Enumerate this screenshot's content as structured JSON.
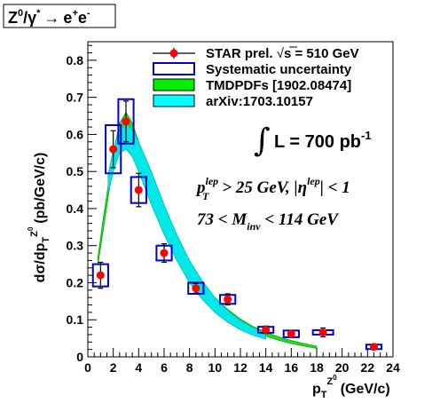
{
  "chart_data": {
    "type": "scatter",
    "corner_label": {
      "base": "Z",
      "sup": "0",
      "slash": "/γ",
      "star": "*",
      "arrow": "→",
      "e1": "e",
      "e1sup": "+",
      "e2": "e",
      "e2sup": "-"
    },
    "xlabel": {
      "base": "p",
      "sub": "T",
      "sup": "Z",
      "supsup": "0",
      "unit": "(GeV/c)"
    },
    "ylabel": {
      "pre": "dσ/dp",
      "sub": "T",
      "sup": "Z",
      "supsup": "0",
      "unit": "(pb/GeV/c)"
    },
    "xlim": [
      0,
      24
    ],
    "ylim": [
      0,
      0.85
    ],
    "xticks": [
      "0",
      "2",
      "4",
      "6",
      "8",
      "10",
      "12",
      "14",
      "16",
      "18",
      "20",
      "22",
      "24"
    ],
    "yticks": [
      "0",
      "0.1",
      "0.2",
      "0.3",
      "0.4",
      "0.5",
      "0.6",
      "0.7",
      "0.8"
    ],
    "legend": [
      {
        "label_pre": "STAR prel.",
        "label_root": "s = 510 GeV",
        "color": "#ff0000"
      },
      {
        "label": "Systematic uncertainty",
        "color": "#0000cc"
      },
      {
        "label": "TMDPDFs [1902.08474]",
        "color": "#00ee00"
      },
      {
        "label": "arXiv:1703.10157",
        "color": "#00ffff"
      }
    ],
    "luminosity": {
      "symbol": "∫",
      "text": "L = 700 pb",
      "sup": "-1"
    },
    "cut1": {
      "p": "p",
      "psup": "lep",
      "psub": "T",
      "mid": " > 25 GeV, |η",
      "etasup": "lep",
      "end": "| < 1"
    },
    "cut2": {
      "pre": "73 < M",
      "sub": "inv",
      "post": " < 114 GeV"
    },
    "series": [
      {
        "name": "STAR prel.",
        "color": "#ff0000",
        "x": [
          1.0,
          2.0,
          3.0,
          4.0,
          6.0,
          8.5,
          11.0,
          14.0,
          16.0,
          18.5,
          22.5
        ],
        "y": [
          0.22,
          0.56,
          0.635,
          0.45,
          0.28,
          0.185,
          0.155,
          0.073,
          0.062,
          0.066,
          0.027
        ],
        "stat": [
          0.035,
          0.05,
          0.055,
          0.045,
          0.025,
          0.013,
          0.015,
          0.01,
          0.009,
          0.012,
          0.007
        ],
        "syst": [
          0.03,
          0.065,
          0.06,
          0.035,
          0.02,
          0.015,
          0.012,
          0.008,
          0.009,
          0.006,
          0.006
        ],
        "xhw": [
          0.6,
          0.6,
          0.6,
          0.6,
          0.6,
          0.6,
          0.6,
          0.6,
          0.6,
          0.8,
          0.6
        ]
      }
    ],
    "tmdpdfs_band": {
      "x": [
        0.8,
        1.2,
        1.6,
        2.0,
        2.5,
        3.0,
        3.5,
        4.0,
        5.0,
        6.0,
        7.0,
        8.0,
        9.0,
        10.0,
        11.0,
        12.0,
        13.0,
        14.0,
        15.0,
        16.0,
        17.0,
        18.0
      ],
      "low": [
        0.25,
        0.34,
        0.43,
        0.52,
        0.6,
        0.63,
        0.6,
        0.55,
        0.45,
        0.36,
        0.29,
        0.23,
        0.18,
        0.143,
        0.113,
        0.09,
        0.071,
        0.056,
        0.045,
        0.036,
        0.029,
        0.023
      ],
      "high": [
        0.27,
        0.37,
        0.46,
        0.55,
        0.63,
        0.66,
        0.63,
        0.58,
        0.47,
        0.38,
        0.31,
        0.25,
        0.2,
        0.16,
        0.128,
        0.102,
        0.082,
        0.066,
        0.054,
        0.044,
        0.036,
        0.029
      ]
    },
    "arxiv_band": {
      "x": [
        1.6,
        2.0,
        2.5,
        3.0,
        3.5,
        4.0,
        5.0,
        6.0,
        7.0,
        8.0,
        9.0,
        10.0,
        11.0,
        12.0,
        13.0,
        14.0
      ],
      "low": [
        0.44,
        0.5,
        0.55,
        0.56,
        0.54,
        0.5,
        0.41,
        0.33,
        0.26,
        0.2,
        0.155,
        0.12,
        0.093,
        0.073,
        0.058,
        0.048
      ],
      "high": [
        0.49,
        0.56,
        0.61,
        0.63,
        0.61,
        0.58,
        0.5,
        0.41,
        0.33,
        0.26,
        0.205,
        0.16,
        0.125,
        0.098,
        0.078,
        0.065
      ]
    }
  }
}
